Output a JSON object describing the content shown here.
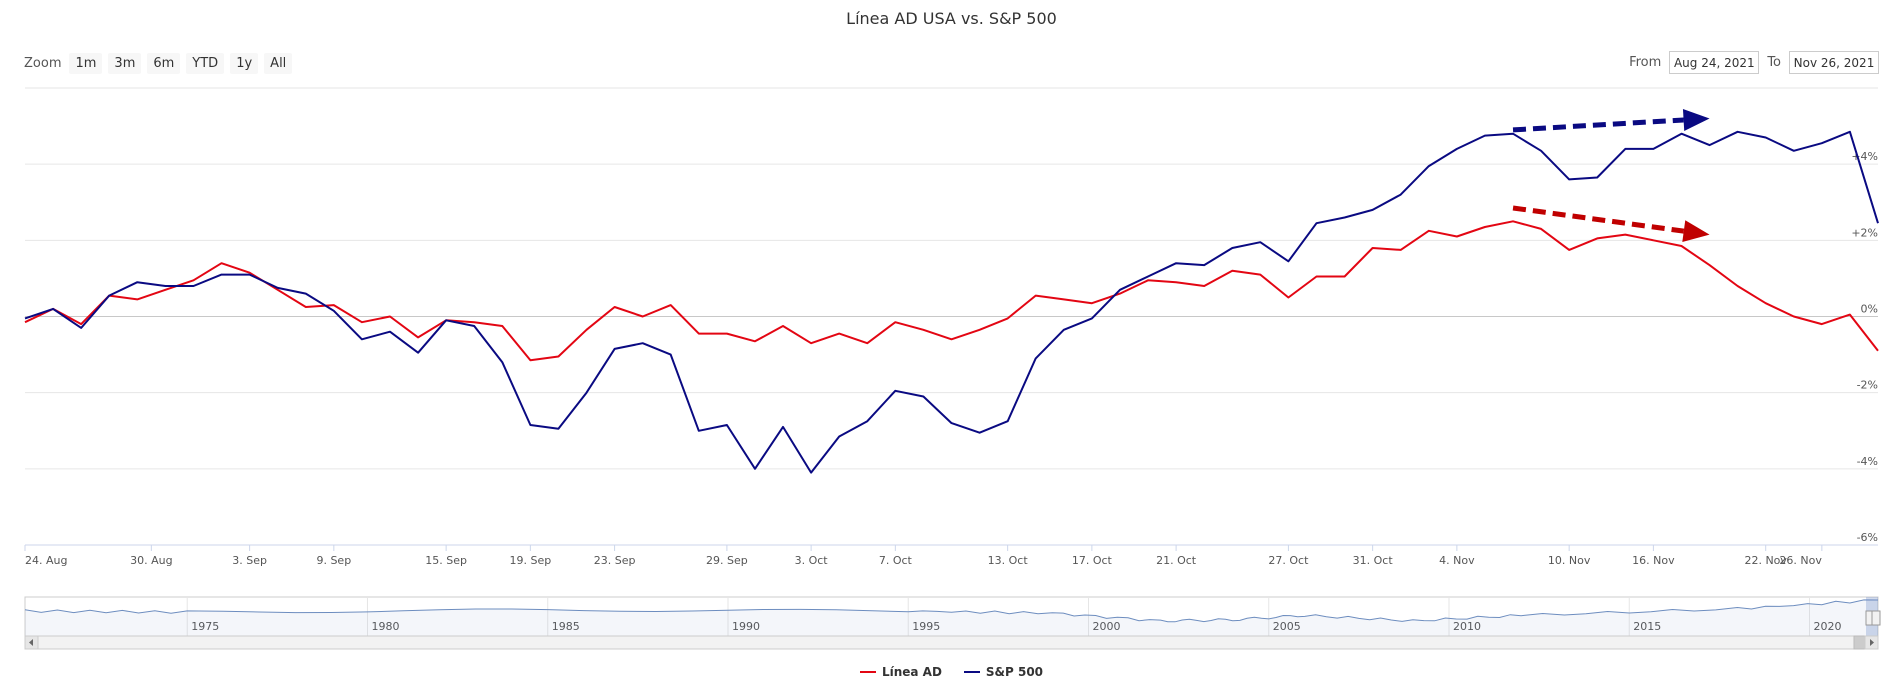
{
  "title": "Línea AD USA vs. S&P 500",
  "zoom": {
    "label": "Zoom",
    "buttons": [
      "1m",
      "3m",
      "6m",
      "YTD",
      "1y",
      "All"
    ]
  },
  "range": {
    "from_label": "From",
    "from_value": "Aug 24, 2021",
    "to_label": "To",
    "to_value": "Nov 26, 2021"
  },
  "colors": {
    "ad": "#e30613",
    "spx": "#0a0a82",
    "grid": "#e6e6e6",
    "navigator": "#6d8dbf"
  },
  "chart_data": {
    "type": "line",
    "title": "Línea AD USA vs. S&P 500",
    "xlabel": "",
    "ylabel": "",
    "ylim": [
      -6,
      6
    ],
    "y_ticks": [
      "-6%",
      "-4%",
      "-2%",
      "0%",
      "+2%",
      "+4%"
    ],
    "x_tick_labels": [
      "24. Aug",
      "30. Aug",
      "3. Sep",
      "9. Sep",
      "15. Sep",
      "19. Sep",
      "23. Sep",
      "29. Sep",
      "3. Oct",
      "7. Oct",
      "13. Oct",
      "17. Oct",
      "21. Oct",
      "27. Oct",
      "31. Oct",
      "4. Nov",
      "10. Nov",
      "16. Nov",
      "22. Nov",
      "26. Nov"
    ],
    "x_tick_positions": [
      0,
      4.5,
      8,
      11,
      15,
      18,
      21,
      25,
      28,
      31,
      35,
      38,
      41,
      45,
      48,
      51,
      55,
      58,
      62,
      64
    ],
    "series": [
      {
        "name": "Línea AD",
        "values": [
          -0.15,
          0.2,
          -0.2,
          0.55,
          0.45,
          0.7,
          0.95,
          1.4,
          1.15,
          0.7,
          0.25,
          0.3,
          -0.15,
          0.0,
          -0.55,
          -0.1,
          -0.15,
          -0.25,
          -1.15,
          -1.05,
          -0.35,
          0.25,
          0.0,
          0.3,
          -0.45,
          -0.45,
          -0.65,
          -0.25,
          -0.7,
          -0.45,
          -0.7,
          -0.15,
          -0.35,
          -0.6,
          -0.35,
          -0.05,
          0.55,
          0.45,
          0.35,
          0.6,
          0.95,
          0.9,
          0.8,
          1.2,
          1.1,
          0.5,
          1.05,
          1.05,
          1.8,
          1.75,
          2.25,
          2.1,
          2.35,
          2.5,
          2.3,
          1.75,
          2.05,
          2.15,
          2.0,
          1.85,
          1.35,
          0.8,
          0.35,
          0.0,
          -0.2,
          0.05,
          -0.9
        ]
      },
      {
        "name": "S&P 500",
        "values": [
          -0.05,
          0.2,
          -0.3,
          0.55,
          0.9,
          0.8,
          0.8,
          1.1,
          1.1,
          0.75,
          0.6,
          0.15,
          -0.6,
          -0.4,
          -0.95,
          -0.1,
          -0.25,
          -1.2,
          -2.85,
          -2.95,
          -2.0,
          -0.85,
          -0.7,
          -1.0,
          -3.0,
          -2.85,
          -4.0,
          -2.9,
          -4.1,
          -3.15,
          -2.75,
          -1.95,
          -2.1,
          -2.8,
          -3.05,
          -2.75,
          -1.1,
          -0.35,
          -0.05,
          0.7,
          1.05,
          1.4,
          1.35,
          1.8,
          1.95,
          1.45,
          2.45,
          2.6,
          2.8,
          3.2,
          3.95,
          4.4,
          4.75,
          4.8,
          4.35,
          3.6,
          3.65,
          4.4,
          4.4,
          4.8,
          4.5,
          4.85,
          4.7,
          4.35,
          4.55,
          4.85,
          2.45
        ]
      }
    ],
    "annotations": [
      {
        "type": "arrow",
        "color": "#0a0a82",
        "from": [
          53,
          4.9
        ],
        "to": [
          60,
          5.2
        ],
        "style": "dashed"
      },
      {
        "type": "arrow",
        "color": "#c00000",
        "from": [
          53,
          2.85
        ],
        "to": [
          60,
          2.15
        ],
        "style": "dashed"
      }
    ],
    "legend_position": "bottom-center"
  },
  "navigator": {
    "tick_labels": [
      "1975",
      "1980",
      "1985",
      "1990",
      "1995",
      "2000",
      "2005",
      "2010",
      "2015",
      "2020"
    ],
    "start_year": 1970.5,
    "end_year": 2021.9,
    "profile": [
      [
        1970.5,
        0.5
      ],
      [
        1975,
        0.45
      ],
      [
        1985,
        0.55
      ],
      [
        1995,
        0.5
      ],
      [
        1999,
        0.4
      ],
      [
        2002,
        0.05
      ],
      [
        2004,
        0.1
      ],
      [
        2006,
        0.3
      ],
      [
        2009,
        0.05
      ],
      [
        2012,
        0.3
      ],
      [
        2018,
        0.6
      ],
      [
        2021.9,
        1.0
      ]
    ]
  },
  "legend": {
    "items": [
      "Línea AD",
      "S&P 500"
    ]
  }
}
